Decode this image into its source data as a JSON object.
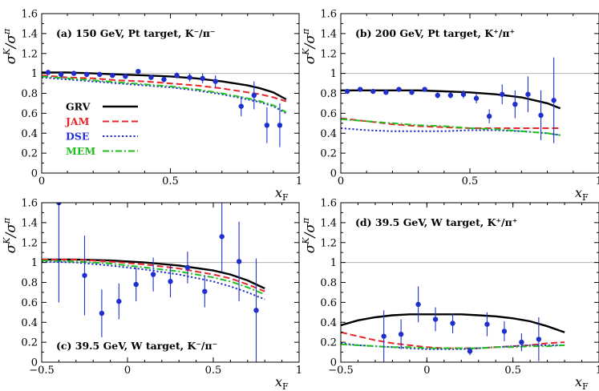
{
  "figure": {
    "ylabel": "σK/σπ",
    "xlabel": "xF"
  },
  "legend": [
    {
      "name": "GRV",
      "color": "#000000",
      "dash": "solid"
    },
    {
      "name": "JAM",
      "color": "#e8262b",
      "dash": "dashed"
    },
    {
      "name": "DSE",
      "color": "#1f2ecf",
      "dash": "dotted"
    },
    {
      "name": "MEM",
      "color": "#1fbf1f",
      "dash": "dashdot"
    }
  ],
  "chart_data": [
    {
      "type": "scatter",
      "id": "a",
      "title": "(a)  150 GeV, Pt target,  K⁻/π⁻",
      "xlabel": "xF",
      "ylabel": "σK/σπ",
      "xlim": [
        0,
        1
      ],
      "ylim": [
        0,
        1.6
      ],
      "xticks": [
        "0",
        "0.5",
        "1"
      ],
      "yticks": [
        "0",
        "0.2",
        "0.4",
        "0.6",
        "0.8",
        "1",
        "1.2",
        "1.4",
        "1.6"
      ],
      "refline": 1,
      "points": [
        {
          "x": 0.025,
          "y": 1.01,
          "err": 0.02
        },
        {
          "x": 0.075,
          "y": 0.99,
          "err": 0.02
        },
        {
          "x": 0.125,
          "y": 1.0,
          "err": 0.02
        },
        {
          "x": 0.175,
          "y": 0.99,
          "err": 0.02
        },
        {
          "x": 0.225,
          "y": 0.99,
          "err": 0.02
        },
        {
          "x": 0.275,
          "y": 0.98,
          "err": 0.02
        },
        {
          "x": 0.325,
          "y": 0.97,
          "err": 0.02
        },
        {
          "x": 0.375,
          "y": 1.02,
          "err": 0.02
        },
        {
          "x": 0.425,
          "y": 0.96,
          "err": 0.02
        },
        {
          "x": 0.475,
          "y": 0.94,
          "err": 0.03
        },
        {
          "x": 0.525,
          "y": 0.98,
          "err": 0.03
        },
        {
          "x": 0.575,
          "y": 0.96,
          "err": 0.04
        },
        {
          "x": 0.625,
          "y": 0.95,
          "err": 0.05
        },
        {
          "x": 0.675,
          "y": 0.92,
          "err": 0.06
        },
        {
          "x": 0.775,
          "y": 0.67,
          "err": 0.1
        },
        {
          "x": 0.825,
          "y": 0.78,
          "err": 0.14
        },
        {
          "x": 0.875,
          "y": 0.48,
          "err": 0.18
        },
        {
          "x": 0.925,
          "y": 0.48,
          "err": 0.22
        }
      ],
      "series": [
        {
          "name": "GRV",
          "x": [
            0,
            0.1,
            0.2,
            0.3,
            0.4,
            0.5,
            0.6,
            0.7,
            0.8,
            0.85,
            0.9,
            0.95
          ],
          "y": [
            1.01,
            1.01,
            1.0,
            0.99,
            0.98,
            0.97,
            0.95,
            0.92,
            0.88,
            0.85,
            0.81,
            0.74
          ]
        },
        {
          "name": "JAM",
          "x": [
            0,
            0.1,
            0.2,
            0.3,
            0.4,
            0.5,
            0.6,
            0.7,
            0.8,
            0.85,
            0.9,
            0.95
          ],
          "y": [
            0.98,
            0.96,
            0.95,
            0.93,
            0.92,
            0.9,
            0.88,
            0.85,
            0.81,
            0.79,
            0.76,
            0.72
          ]
        },
        {
          "name": "DSE",
          "x": [
            0,
            0.1,
            0.2,
            0.3,
            0.4,
            0.5,
            0.6,
            0.7,
            0.8,
            0.85,
            0.9,
            0.95
          ],
          "y": [
            0.96,
            0.94,
            0.92,
            0.9,
            0.88,
            0.86,
            0.83,
            0.79,
            0.74,
            0.71,
            0.67,
            0.6
          ]
        },
        {
          "name": "MEM",
          "x": [
            0,
            0.1,
            0.2,
            0.3,
            0.4,
            0.5,
            0.6,
            0.7,
            0.8,
            0.85,
            0.9,
            0.95
          ],
          "y": [
            0.97,
            0.95,
            0.93,
            0.91,
            0.89,
            0.87,
            0.84,
            0.8,
            0.75,
            0.72,
            0.68,
            0.61
          ]
        }
      ]
    },
    {
      "type": "scatter",
      "id": "b",
      "title": "(b)  200 GeV, Pt target,  K⁺/π⁺",
      "xlabel": "xF",
      "ylabel": "σK/σπ",
      "xlim": [
        0,
        1
      ],
      "ylim": [
        0,
        1.6
      ],
      "xticks": [
        "0",
        "0.5",
        "1"
      ],
      "yticks": [
        "0",
        "0.2",
        "0.4",
        "0.6",
        "0.8",
        "1",
        "1.2",
        "1.4",
        "1.6"
      ],
      "refline": 1,
      "points": [
        {
          "x": 0.025,
          "y": 0.82,
          "err": 0.02
        },
        {
          "x": 0.075,
          "y": 0.84,
          "err": 0.02
        },
        {
          "x": 0.125,
          "y": 0.82,
          "err": 0.02
        },
        {
          "x": 0.175,
          "y": 0.81,
          "err": 0.02
        },
        {
          "x": 0.225,
          "y": 0.84,
          "err": 0.02
        },
        {
          "x": 0.275,
          "y": 0.81,
          "err": 0.02
        },
        {
          "x": 0.325,
          "y": 0.84,
          "err": 0.02
        },
        {
          "x": 0.375,
          "y": 0.78,
          "err": 0.03
        },
        {
          "x": 0.425,
          "y": 0.78,
          "err": 0.03
        },
        {
          "x": 0.475,
          "y": 0.79,
          "err": 0.04
        },
        {
          "x": 0.525,
          "y": 0.75,
          "err": 0.05
        },
        {
          "x": 0.575,
          "y": 0.57,
          "err": 0.07
        },
        {
          "x": 0.625,
          "y": 0.79,
          "err": 0.1
        },
        {
          "x": 0.675,
          "y": 0.69,
          "err": 0.14
        },
        {
          "x": 0.725,
          "y": 0.79,
          "err": 0.18
        },
        {
          "x": 0.775,
          "y": 0.58,
          "err": 0.25
        },
        {
          "x": 0.825,
          "y": 0.73,
          "err": 0.43
        }
      ],
      "series": [
        {
          "name": "GRV",
          "x": [
            0,
            0.1,
            0.2,
            0.3,
            0.4,
            0.5,
            0.6,
            0.7,
            0.75,
            0.8,
            0.85
          ],
          "y": [
            0.83,
            0.83,
            0.83,
            0.83,
            0.82,
            0.81,
            0.79,
            0.76,
            0.73,
            0.7,
            0.65
          ]
        },
        {
          "name": "JAM",
          "x": [
            0,
            0.1,
            0.2,
            0.3,
            0.4,
            0.5,
            0.6,
            0.7,
            0.8,
            0.85
          ],
          "y": [
            0.55,
            0.52,
            0.49,
            0.47,
            0.46,
            0.45,
            0.45,
            0.45,
            0.45,
            0.45
          ]
        },
        {
          "name": "DSE",
          "x": [
            0,
            0.1,
            0.2,
            0.3,
            0.4,
            0.5,
            0.6,
            0.7,
            0.8,
            0.85
          ],
          "y": [
            0.45,
            0.43,
            0.42,
            0.42,
            0.42,
            0.43,
            0.43,
            0.42,
            0.4,
            0.38
          ]
        },
        {
          "name": "MEM",
          "x": [
            0,
            0.1,
            0.2,
            0.3,
            0.4,
            0.5,
            0.6,
            0.7,
            0.8,
            0.85
          ],
          "y": [
            0.54,
            0.52,
            0.5,
            0.48,
            0.47,
            0.45,
            0.44,
            0.42,
            0.4,
            0.38
          ]
        }
      ]
    },
    {
      "type": "scatter",
      "id": "c",
      "title": "(c)  39.5 GeV, W target,  K⁻/π⁻",
      "xlabel": "xF",
      "ylabel": "σK/σπ",
      "xlim": [
        -0.5,
        1
      ],
      "ylim": [
        0,
        1.6
      ],
      "xticks": [
        "−0.5",
        "0",
        "0.5",
        "1"
      ],
      "yticks": [
        "0",
        "0.2",
        "0.4",
        "0.6",
        "0.8",
        "1",
        "1.2",
        "1.4",
        "1.6"
      ],
      "refline": 1,
      "points": [
        {
          "x": -0.4,
          "y": 1.6,
          "err": 1.0
        },
        {
          "x": -0.25,
          "y": 0.87,
          "err": 0.4
        },
        {
          "x": -0.15,
          "y": 0.49,
          "err": 0.24
        },
        {
          "x": -0.05,
          "y": 0.61,
          "err": 0.18
        },
        {
          "x": 0.05,
          "y": 0.78,
          "err": 0.17
        },
        {
          "x": 0.15,
          "y": 0.88,
          "err": 0.17
        },
        {
          "x": 0.25,
          "y": 0.81,
          "err": 0.16
        },
        {
          "x": 0.35,
          "y": 0.95,
          "err": 0.16
        },
        {
          "x": 0.45,
          "y": 0.71,
          "err": 0.16
        },
        {
          "x": 0.55,
          "y": 1.26,
          "err": 0.36
        },
        {
          "x": 0.65,
          "y": 1.01,
          "err": 0.4
        },
        {
          "x": 0.75,
          "y": 0.52,
          "err": 0.52
        }
      ],
      "series": [
        {
          "name": "GRV",
          "x": [
            -0.5,
            -0.3,
            -0.1,
            0.1,
            0.3,
            0.5,
            0.6,
            0.7,
            0.8
          ],
          "y": [
            1.03,
            1.03,
            1.02,
            1.0,
            0.97,
            0.92,
            0.88,
            0.82,
            0.74
          ]
        },
        {
          "name": "JAM",
          "x": [
            -0.5,
            -0.3,
            -0.1,
            0.1,
            0.3,
            0.5,
            0.6,
            0.7,
            0.8
          ],
          "y": [
            1.03,
            1.03,
            1.01,
            0.98,
            0.94,
            0.88,
            0.84,
            0.78,
            0.71
          ]
        },
        {
          "name": "DSE",
          "x": [
            -0.5,
            -0.3,
            -0.1,
            0.1,
            0.3,
            0.5,
            0.6,
            0.7,
            0.8
          ],
          "y": [
            1.01,
            1.0,
            0.97,
            0.93,
            0.88,
            0.81,
            0.76,
            0.7,
            0.63
          ]
        },
        {
          "name": "MEM",
          "x": [
            -0.5,
            -0.3,
            -0.1,
            0.1,
            0.3,
            0.5,
            0.6,
            0.7,
            0.8
          ],
          "y": [
            1.02,
            1.01,
            0.99,
            0.95,
            0.91,
            0.85,
            0.81,
            0.75,
            0.68
          ]
        }
      ]
    },
    {
      "type": "scatter",
      "id": "d",
      "title": "(d)  39.5 GeV, W target,  K⁺/π⁺",
      "xlabel": "xF",
      "ylabel": "σK/σπ",
      "xlim": [
        -0.5,
        1
      ],
      "ylim": [
        0,
        1.6
      ],
      "xticks": [
        "−0.5",
        "0",
        "0.5",
        "1"
      ],
      "yticks": [
        "0",
        "0.2",
        "0.4",
        "0.6",
        "0.8",
        "1",
        "1.2",
        "1.4",
        "1.6"
      ],
      "refline": 1,
      "points": [
        {
          "x": -0.25,
          "y": 0.26,
          "err": 0.26
        },
        {
          "x": -0.15,
          "y": 0.28,
          "err": 0.15
        },
        {
          "x": -0.05,
          "y": 0.58,
          "err": 0.18
        },
        {
          "x": 0.05,
          "y": 0.43,
          "err": 0.12
        },
        {
          "x": 0.15,
          "y": 0.39,
          "err": 0.1
        },
        {
          "x": 0.25,
          "y": 0.11,
          "err": 0.04
        },
        {
          "x": 0.35,
          "y": 0.38,
          "err": 0.12
        },
        {
          "x": 0.45,
          "y": 0.31,
          "err": 0.1
        },
        {
          "x": 0.55,
          "y": 0.2,
          "err": 0.09
        },
        {
          "x": 0.65,
          "y": 0.23,
          "err": 0.22
        }
      ],
      "series": [
        {
          "name": "GRV",
          "x": [
            -0.5,
            -0.4,
            -0.3,
            -0.2,
            -0.1,
            0,
            0.1,
            0.2,
            0.3,
            0.4,
            0.5,
            0.6,
            0.7,
            0.8
          ],
          "y": [
            0.37,
            0.42,
            0.45,
            0.47,
            0.48,
            0.48,
            0.48,
            0.48,
            0.47,
            0.46,
            0.44,
            0.41,
            0.36,
            0.3
          ]
        },
        {
          "name": "JAM",
          "x": [
            -0.5,
            -0.4,
            -0.3,
            -0.2,
            -0.1,
            0,
            0.1,
            0.2,
            0.3,
            0.4,
            0.5,
            0.6,
            0.7,
            0.8
          ],
          "y": [
            0.3,
            0.26,
            0.22,
            0.19,
            0.17,
            0.15,
            0.14,
            0.14,
            0.14,
            0.15,
            0.16,
            0.17,
            0.19,
            0.2
          ]
        },
        {
          "name": "DSE",
          "x": [
            -0.5,
            -0.4,
            -0.3,
            -0.2,
            -0.1,
            0,
            0.1,
            0.2,
            0.3,
            0.4,
            0.5,
            0.6,
            0.7,
            0.8
          ],
          "y": [
            0.19,
            0.17,
            0.16,
            0.15,
            0.14,
            0.13,
            0.13,
            0.13,
            0.14,
            0.15,
            0.16,
            0.17,
            0.17,
            0.17
          ]
        },
        {
          "name": "MEM",
          "x": [
            -0.5,
            -0.4,
            -0.3,
            -0.2,
            -0.1,
            0,
            0.1,
            0.2,
            0.3,
            0.4,
            0.5,
            0.6,
            0.7,
            0.8
          ],
          "y": [
            0.18,
            0.17,
            0.16,
            0.15,
            0.15,
            0.14,
            0.14,
            0.14,
            0.14,
            0.15,
            0.15,
            0.16,
            0.16,
            0.17
          ]
        }
      ]
    }
  ]
}
